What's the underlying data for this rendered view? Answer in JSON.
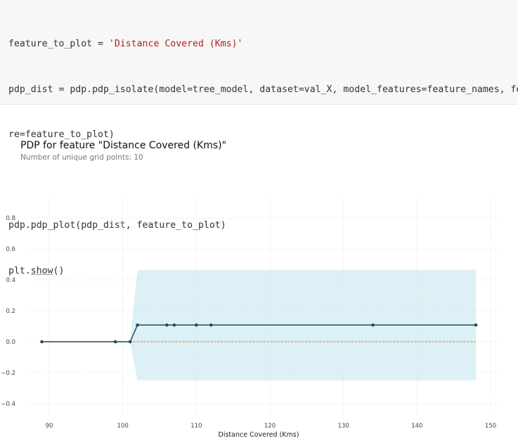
{
  "code": {
    "line1_prefix": "feature_to_plot = ",
    "line1_string": "'Distance Covered (Kms)'",
    "line2": "pdp_dist = pdp.pdp_isolate(model=tree_model, dataset=val_X, model_features=feature_names, featu",
    "line3": "re=feature_to_plot)",
    "line4": "pdp.pdp_plot(pdp_dist, feature_to_plot)",
    "line5_prefix": "plt.",
    "line5_fn": "show",
    "line5_suffix": "()"
  },
  "chart_data": {
    "type": "line",
    "title": "PDP for feature \"Distance Covered (Kms)\"",
    "subtitle": "Number of unique grid points: 10",
    "xlabel": "Distance Covered (Kms)",
    "ylabel": "",
    "xlim": [
      87.5,
      151
    ],
    "ylim": [
      -0.45,
      0.95
    ],
    "xticks": [
      90,
      100,
      110,
      120,
      130,
      140,
      150
    ],
    "yticks": [
      -0.4,
      -0.2,
      0.0,
      0.2,
      0.4,
      0.6,
      0.8
    ],
    "ytick_labels": [
      "−0.4",
      "−0.2",
      "0.0",
      "0.2",
      "0.4",
      "0.6",
      "0.8"
    ],
    "grid": true,
    "series": [
      {
        "x": [
          89,
          99,
          101,
          102,
          106,
          107,
          110,
          112,
          134,
          148
        ],
        "y": [
          0.0,
          0.0,
          0.0,
          0.108,
          0.108,
          0.108,
          0.108,
          0.108,
          0.108,
          0.108
        ],
        "color": "#1f4e5a"
      }
    ],
    "confidence_band": {
      "x": [
        89,
        99,
        101,
        102,
        106,
        107,
        110,
        112,
        134,
        148
      ],
      "upper": [
        0.0,
        0.0,
        0.0,
        0.465,
        0.465,
        0.465,
        0.465,
        0.465,
        0.465,
        0.465
      ],
      "lower": [
        0.0,
        0.0,
        0.0,
        -0.25,
        -0.25,
        -0.25,
        -0.25,
        -0.25,
        -0.25,
        -0.25
      ],
      "color": "#cfeaf1"
    },
    "baseline": {
      "y": 0.0,
      "color": "#d98a4a",
      "style": "dashed"
    }
  }
}
